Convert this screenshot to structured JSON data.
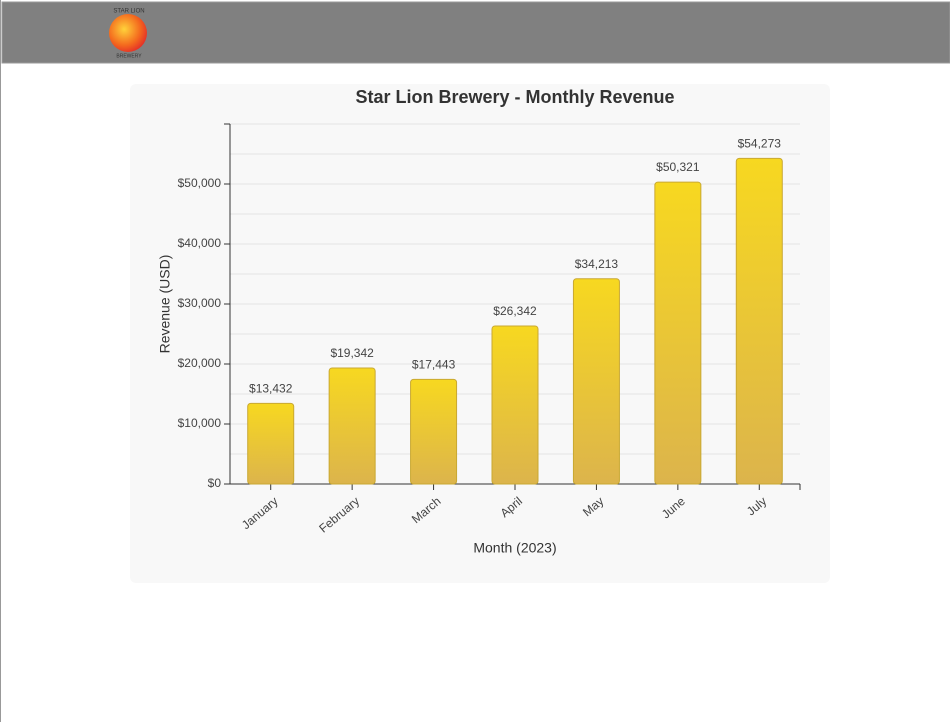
{
  "header": {
    "logo_top": "STAR LION",
    "logo_bottom": "BREWERY"
  },
  "chart_data": {
    "type": "bar",
    "title": "Star Lion Brewery - Monthly Revenue",
    "x_label": "Month (2023)",
    "y_label": "Revenue (USD)",
    "categories": [
      "January",
      "February",
      "March",
      "April",
      "May",
      "June",
      "July"
    ],
    "values": [
      13432,
      19342,
      17443,
      26342,
      34213,
      50321,
      54273
    ],
    "value_labels": [
      "$13,432",
      "$19,342",
      "$17,443",
      "$26,342",
      "$34,213",
      "$50,321",
      "$54,273"
    ],
    "color": "#f2d024",
    "ylim": [
      0,
      60000
    ],
    "yticks": [
      {
        "value": 0,
        "label": "$0"
      },
      {
        "value": 10000,
        "label": "$10,000"
      },
      {
        "value": 20000,
        "label": "$20,000"
      },
      {
        "value": 30000,
        "label": "$30,000"
      },
      {
        "value": 40000,
        "label": "$40,000"
      },
      {
        "value": 50000,
        "label": "$50,000"
      }
    ],
    "minor_yticks": [
      5000,
      15000,
      25000,
      35000,
      45000,
      55000,
      60000
    ],
    "grid": true
  }
}
